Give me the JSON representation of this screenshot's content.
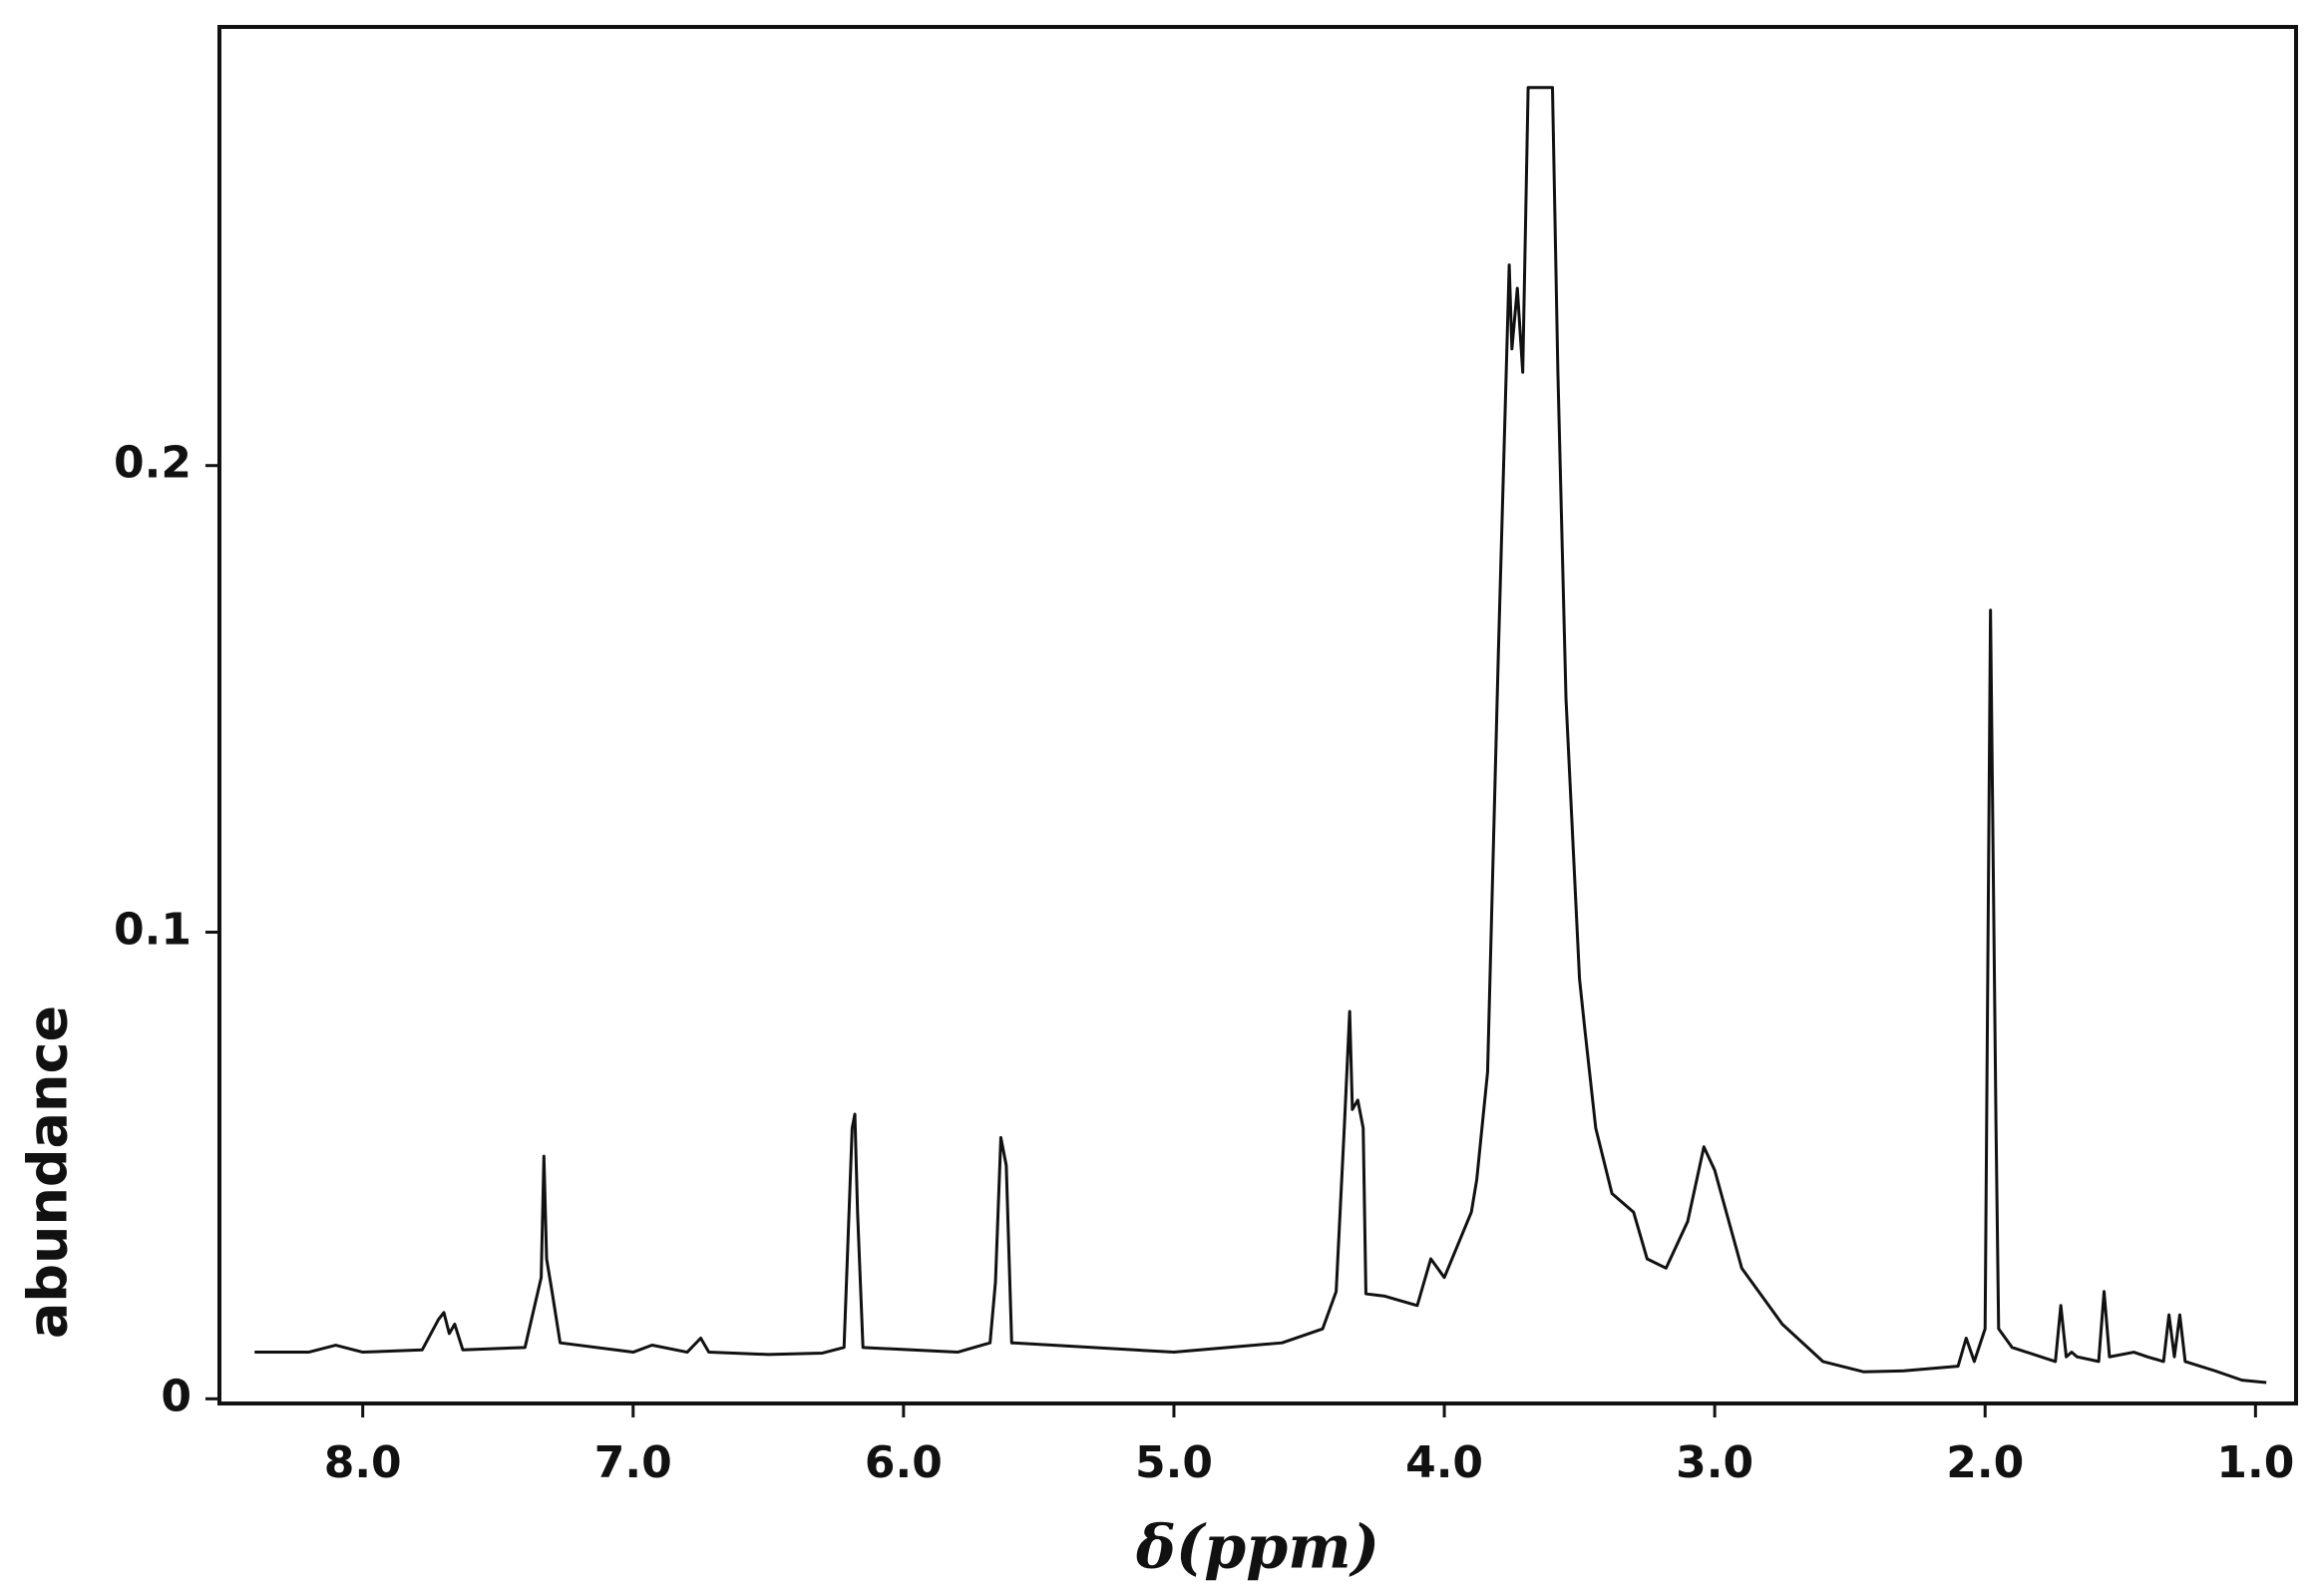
{
  "chart_data": {
    "type": "line",
    "x_label": "δ(ppm)",
    "y_label": "abundance",
    "xlim": [
      8.53,
      0.85
    ],
    "ylim": [
      -0.001,
      0.294
    ],
    "xticks": [
      {
        "value": 8,
        "label": "8.0"
      },
      {
        "value": 7,
        "label": "7.0"
      },
      {
        "value": 6,
        "label": "6.0"
      },
      {
        "value": 5,
        "label": "5.0"
      },
      {
        "value": 4,
        "label": "4.0"
      },
      {
        "value": 3,
        "label": "3.0"
      },
      {
        "value": 2,
        "label": "2.0"
      },
      {
        "value": 1,
        "label": "1.0"
      }
    ],
    "yticks": [
      0,
      0.1,
      0.2
    ],
    "grid": false,
    "series": [
      {
        "color": "#111111",
        "x": [
          8.4,
          8.2,
          8.1,
          8.0,
          7.78,
          7.72,
          7.7,
          7.68,
          7.66,
          7.63,
          7.4,
          7.36,
          7.34,
          7.33,
          7.32,
          7.3,
          7.27,
          7.0,
          6.93,
          6.8,
          6.75,
          6.72,
          6.5,
          6.3,
          6.22,
          6.19,
          6.18,
          6.17,
          6.15,
          5.8,
          5.68,
          5.66,
          5.64,
          5.62,
          5.6,
          5.0,
          4.6,
          4.45,
          4.4,
          4.37,
          4.35,
          4.34,
          4.32,
          4.3,
          4.29,
          4.22,
          4.1,
          4.05,
          4.0,
          3.9,
          3.88,
          3.84,
          3.8,
          3.76,
          3.75,
          3.73,
          3.71,
          3.69,
          3.6,
          3.58,
          3.55,
          3.5,
          3.48,
          3.44,
          3.38,
          3.3,
          3.25,
          3.18,
          3.1,
          3.04,
          3.0,
          2.9,
          2.75,
          2.6,
          2.45,
          2.3,
          2.1,
          2.07,
          2.04,
          2.0,
          1.98,
          1.96,
          1.95,
          1.9,
          1.74,
          1.72,
          1.7,
          1.68,
          1.66,
          1.58,
          1.56,
          1.54,
          1.45,
          1.4,
          1.34,
          1.32,
          1.3,
          1.28,
          1.26,
          1.15,
          1.05,
          0.96
        ],
        "values": [
          0.01,
          0.01,
          0.0115,
          0.01,
          0.0105,
          0.017,
          0.0185,
          0.014,
          0.016,
          0.0105,
          0.011,
          0.021,
          0.026,
          0.052,
          0.03,
          0.023,
          0.012,
          0.01,
          0.0115,
          0.01,
          0.013,
          0.01,
          0.0095,
          0.0098,
          0.011,
          0.058,
          0.061,
          0.04,
          0.011,
          0.01,
          0.012,
          0.025,
          0.056,
          0.05,
          0.012,
          0.01,
          0.012,
          0.015,
          0.023,
          0.058,
          0.083,
          0.062,
          0.064,
          0.058,
          0.0225,
          0.022,
          0.02,
          0.03,
          0.026,
          0.04,
          0.047,
          0.07,
          0.16,
          0.243,
          0.225,
          0.238,
          0.22,
          0.281,
          0.281,
          0.22,
          0.15,
          0.09,
          0.079,
          0.058,
          0.044,
          0.04,
          0.03,
          0.028,
          0.038,
          0.054,
          0.049,
          0.028,
          0.016,
          0.008,
          0.0058,
          0.006,
          0.007,
          0.013,
          0.008,
          0.015,
          0.169,
          0.06,
          0.015,
          0.011,
          0.008,
          0.02,
          0.009,
          0.01,
          0.009,
          0.008,
          0.023,
          0.009,
          0.01,
          0.009,
          0.008,
          0.018,
          0.009,
          0.018,
          0.008,
          0.006,
          0.004,
          0.0035
        ]
      }
    ]
  }
}
